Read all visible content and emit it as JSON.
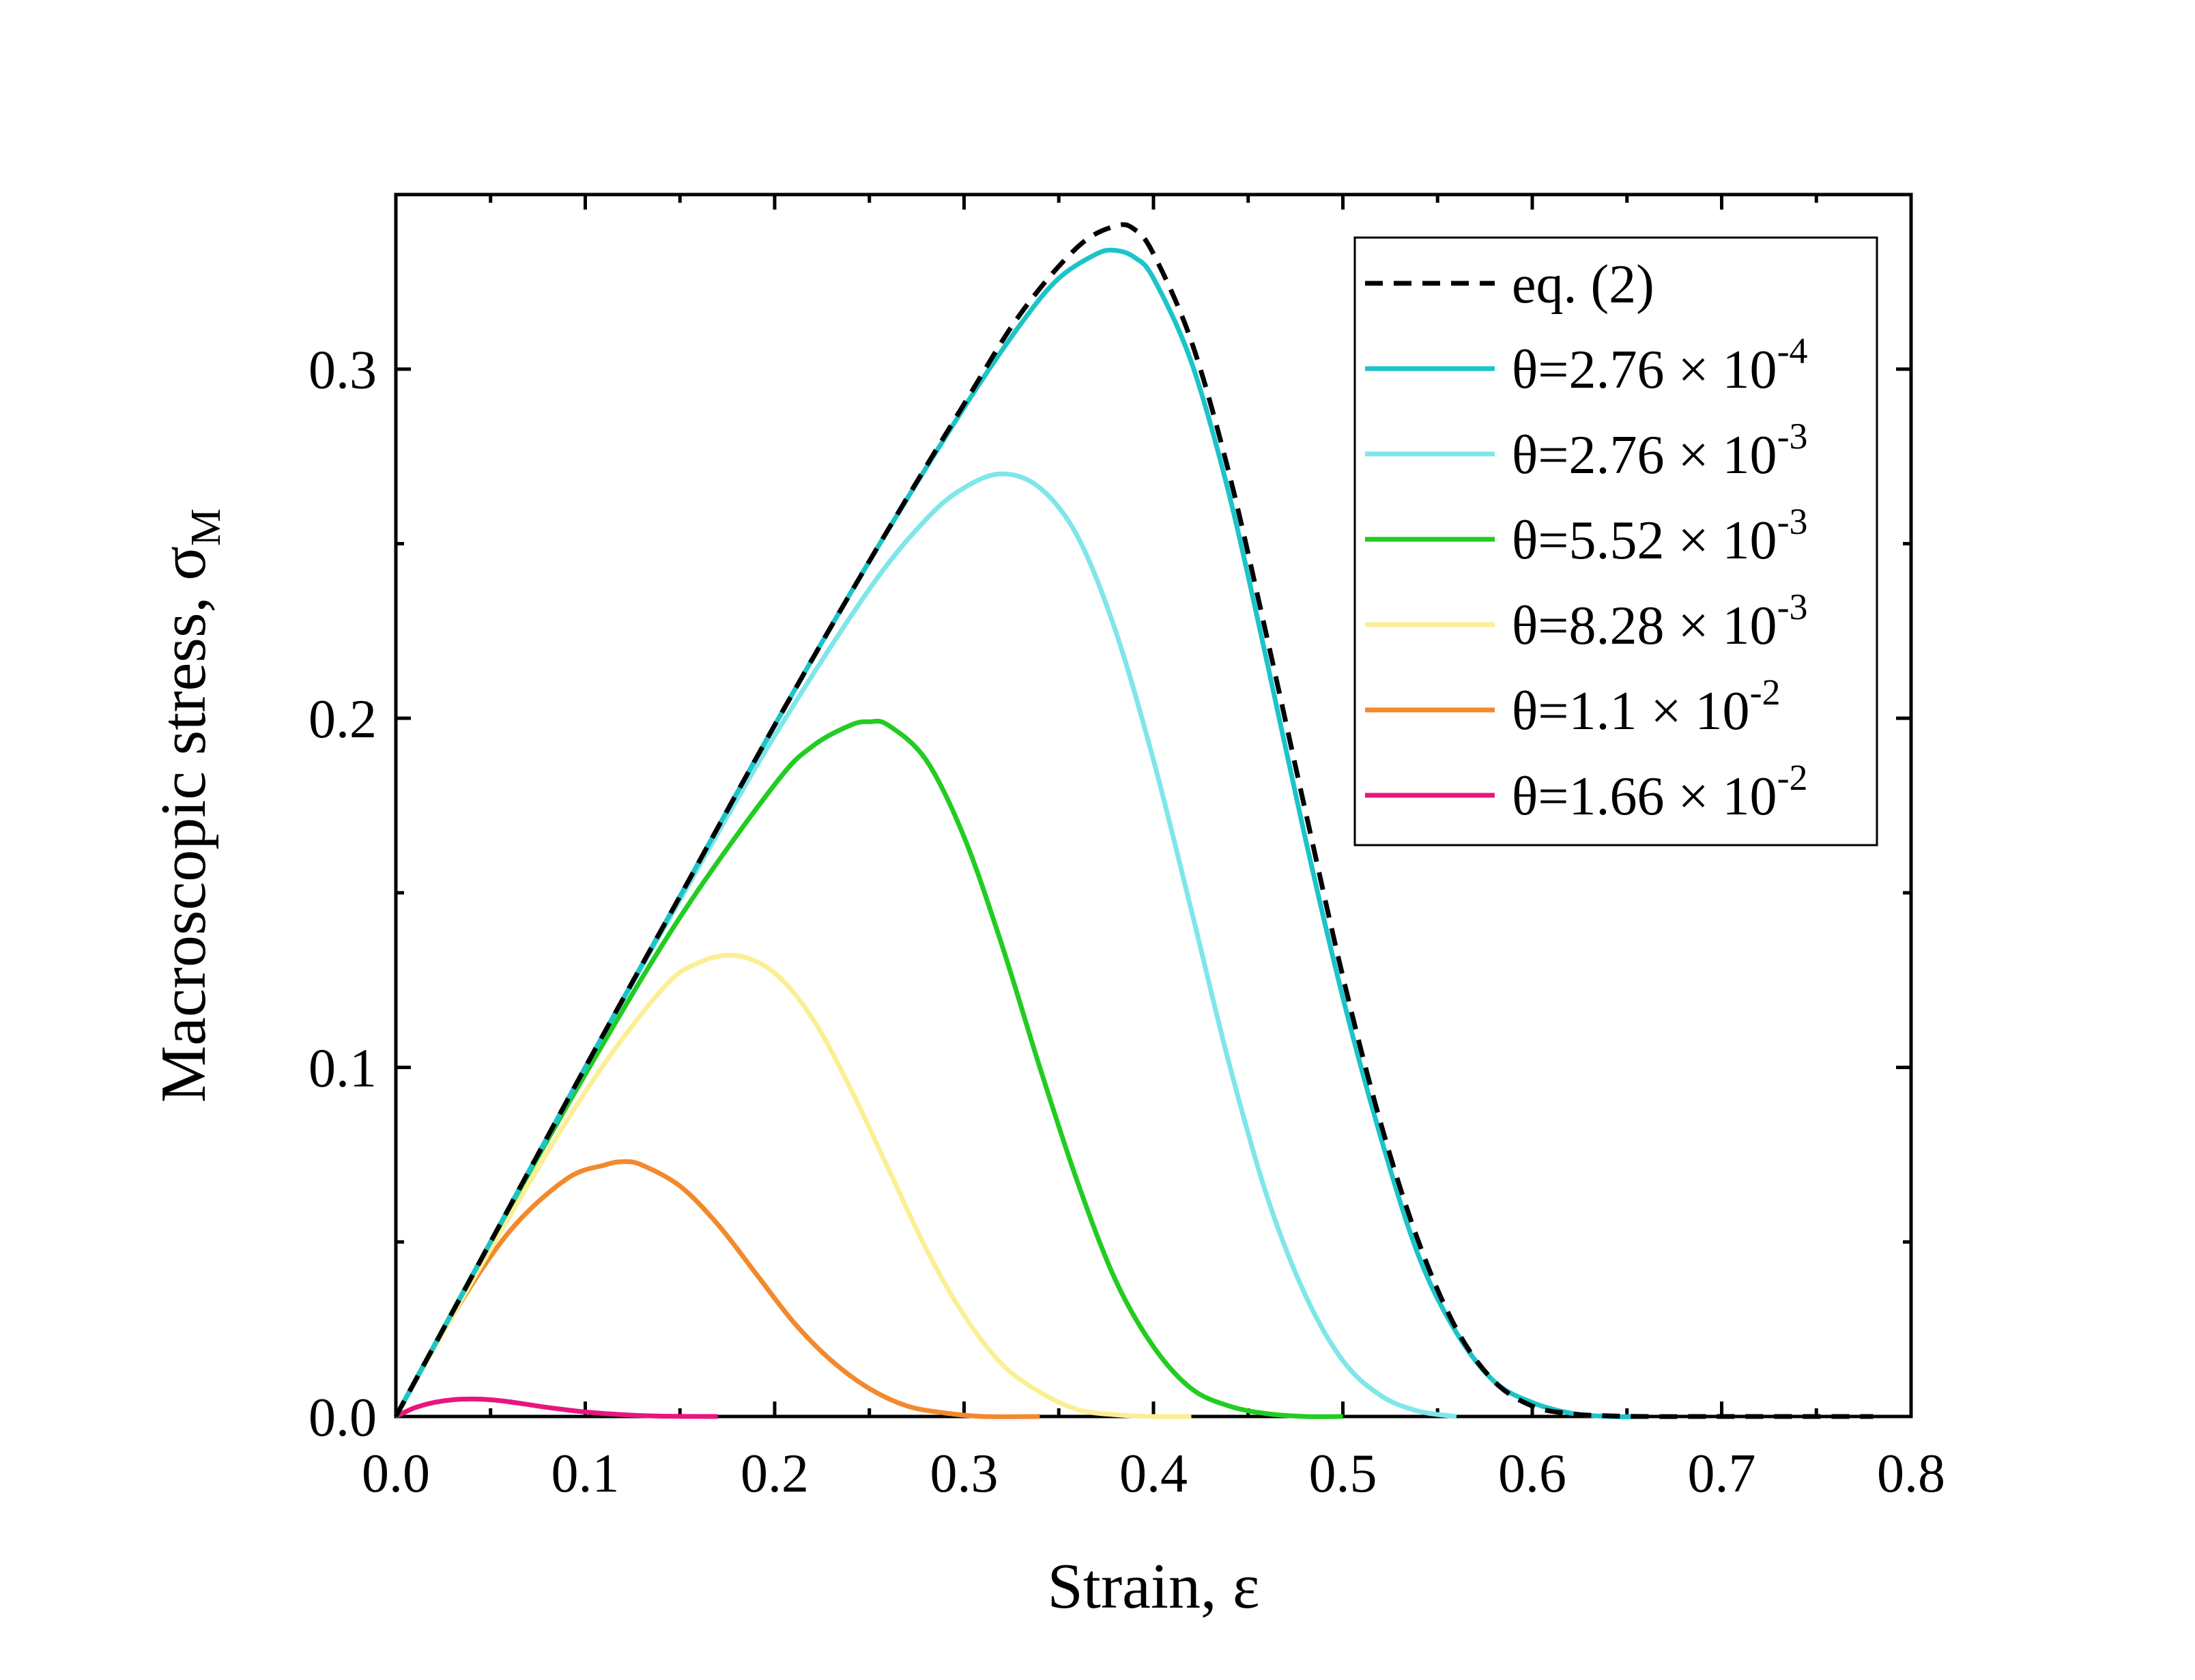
{
  "chart_data": {
    "type": "line",
    "title": "",
    "xlabel": "Strain, ε",
    "ylabel_main": "Macroscopic stress, σ",
    "ylabel_sub": "M",
    "xlim": [
      0,
      0.8
    ],
    "ylim": [
      0,
      0.35
    ],
    "xticks": [
      0,
      0.1,
      0.2,
      0.3,
      0.4,
      0.5,
      0.6,
      0.7,
      0.8
    ],
    "xtick_labels": [
      "0.0",
      "0.1",
      "0.2",
      "0.3",
      "0.4",
      "0.5",
      "0.6",
      "0.7",
      "0.8"
    ],
    "yticks": [
      0,
      0.1,
      0.2,
      0.3
    ],
    "ytick_labels": [
      "0.0",
      "0.1",
      "0.2",
      "0.3"
    ],
    "grid": false,
    "legend_position": "top-right",
    "series": [
      {
        "name": "eq. (2)",
        "label_main": "eq. (2)",
        "label_exp": "",
        "color": "#000000",
        "dashed": true,
        "x": [
          0,
          0.05,
          0.1,
          0.15,
          0.2,
          0.25,
          0.3,
          0.33,
          0.36,
          0.38,
          0.39,
          0.4,
          0.42,
          0.44,
          0.46,
          0.48,
          0.5,
          0.52,
          0.54,
          0.56,
          0.58,
          0.6,
          0.62,
          0.64,
          0.66,
          0.7,
          0.78
        ],
        "y": [
          0,
          0.05,
          0.1,
          0.149,
          0.198,
          0.245,
          0.29,
          0.316,
          0.335,
          0.341,
          0.34,
          0.333,
          0.308,
          0.27,
          0.223,
          0.174,
          0.126,
          0.084,
          0.05,
          0.025,
          0.01,
          0.003,
          0.0008,
          0.0002,
          0,
          0,
          0
        ]
      },
      {
        "name": "θ=2.76 × 10-4",
        "label_main": "θ=2.76 × 10",
        "label_exp": "-4",
        "color": "#1cc4c8",
        "dashed": false,
        "x": [
          0,
          0.05,
          0.1,
          0.15,
          0.2,
          0.25,
          0.3,
          0.33,
          0.35,
          0.37,
          0.38,
          0.39,
          0.4,
          0.42,
          0.44,
          0.46,
          0.48,
          0.5,
          0.52,
          0.54,
          0.56,
          0.58,
          0.6,
          0.62,
          0.64,
          0.66
        ],
        "y": [
          0,
          0.05,
          0.1,
          0.149,
          0.198,
          0.245,
          0.289,
          0.313,
          0.326,
          0.333,
          0.334,
          0.332,
          0.326,
          0.302,
          0.264,
          0.216,
          0.166,
          0.12,
          0.08,
          0.046,
          0.024,
          0.01,
          0.004,
          0.001,
          0,
          0
        ]
      },
      {
        "name": "θ=2.76 × 10-3",
        "label_main": "θ=2.76 × 10",
        "label_exp": "-3",
        "color": "#7fe6ea",
        "dashed": false,
        "x": [
          0,
          0.05,
          0.1,
          0.15,
          0.2,
          0.25,
          0.28,
          0.3,
          0.32,
          0.34,
          0.36,
          0.38,
          0.4,
          0.42,
          0.44,
          0.46,
          0.48,
          0.5,
          0.52,
          0.54,
          0.56
        ],
        "y": [
          0,
          0.05,
          0.1,
          0.148,
          0.195,
          0.237,
          0.257,
          0.266,
          0.27,
          0.266,
          0.252,
          0.225,
          0.188,
          0.145,
          0.101,
          0.063,
          0.035,
          0.016,
          0.006,
          0.0015,
          0
        ]
      },
      {
        "name": "θ=5.52 × 10-3",
        "label_main": "θ=5.52 × 10",
        "label_exp": "-3",
        "color": "#22cc22",
        "dashed": false,
        "x": [
          0,
          0.05,
          0.1,
          0.15,
          0.2,
          0.22,
          0.24,
          0.25,
          0.26,
          0.28,
          0.3,
          0.32,
          0.34,
          0.36,
          0.38,
          0.4,
          0.42,
          0.44,
          0.46,
          0.48,
          0.5
        ],
        "y": [
          0,
          0.05,
          0.098,
          0.143,
          0.181,
          0.192,
          0.198,
          0.199,
          0.198,
          0.188,
          0.166,
          0.135,
          0.1,
          0.067,
          0.039,
          0.02,
          0.008,
          0.003,
          0.0008,
          0,
          0
        ]
      },
      {
        "name": "θ=8.28 × 10-3",
        "label_main": "θ=8.28 × 10",
        "label_exp": "-3",
        "color": "#fbef96",
        "dashed": false,
        "x": [
          0,
          0.05,
          0.1,
          0.14,
          0.16,
          0.18,
          0.2,
          0.22,
          0.24,
          0.26,
          0.28,
          0.3,
          0.32,
          0.34,
          0.36,
          0.38,
          0.4,
          0.42
        ],
        "y": [
          0,
          0.048,
          0.093,
          0.122,
          0.13,
          0.132,
          0.127,
          0.114,
          0.094,
          0.071,
          0.048,
          0.029,
          0.015,
          0.007,
          0.002,
          0.0005,
          0,
          0
        ]
      },
      {
        "name": "θ=1.1 × 10-2",
        "label_main": "θ=1.1 × 10",
        "label_exp": "-2",
        "color": "#f28a2c",
        "dashed": false,
        "x": [
          0,
          0.03,
          0.06,
          0.09,
          0.11,
          0.12,
          0.13,
          0.15,
          0.17,
          0.19,
          0.21,
          0.23,
          0.25,
          0.27,
          0.29,
          0.31,
          0.34
        ],
        "y": [
          0,
          0.029,
          0.053,
          0.068,
          0.072,
          0.073,
          0.072,
          0.066,
          0.055,
          0.041,
          0.027,
          0.016,
          0.008,
          0.003,
          0.001,
          0,
          0
        ]
      },
      {
        "name": "θ=1.66 × 10-2",
        "label_main": "θ=1.66 × 10",
        "label_exp": "-2",
        "color": "#e8157f",
        "dashed": false,
        "x": [
          0,
          0.01,
          0.02,
          0.03,
          0.04,
          0.05,
          0.06,
          0.07,
          0.08,
          0.1,
          0.12,
          0.14,
          0.17
        ],
        "y": [
          0,
          0.0025,
          0.004,
          0.0048,
          0.005,
          0.0048,
          0.0042,
          0.0034,
          0.0026,
          0.0013,
          0.0005,
          0.0001,
          0
        ]
      }
    ]
  }
}
